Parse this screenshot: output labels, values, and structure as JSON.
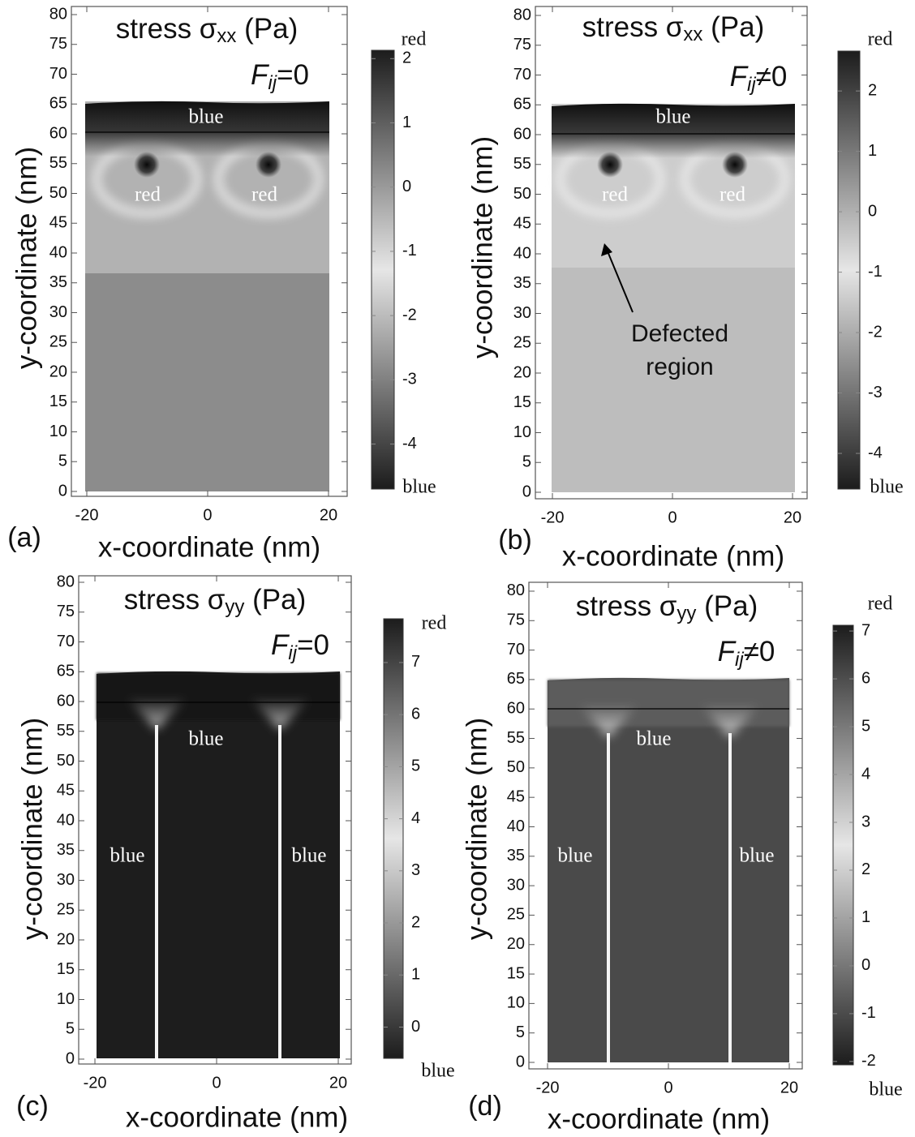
{
  "chart_data": [
    {
      "type": "heatmap",
      "panel_label": "(a)",
      "title": [
        "stress σ",
        "xx",
        " (Pa)"
      ],
      "condition": [
        "F",
        "ij",
        "=0"
      ],
      "xlabel": "x-coordinate (nm)",
      "ylabel": "y-coordinate (nm)",
      "xlim": [
        -22.55,
        23.09
      ],
      "ylim": [
        -0.82,
        81.36
      ],
      "xticks": [
        -20,
        0,
        20
      ],
      "yticks": [
        0,
        5,
        10,
        15,
        20,
        25,
        30,
        35,
        40,
        45,
        50,
        55,
        60,
        65,
        70,
        75,
        80
      ],
      "colorbar": {
        "lim": [
          -4.7,
          2.13
        ],
        "ticks": [
          -4,
          -3,
          -2,
          -1,
          0,
          1,
          2
        ],
        "top_label": "red",
        "bottom_label": "blue",
        "colors": [
          "#1c1c1c",
          "#e6e6e6",
          "#1c1c1c"
        ]
      },
      "annotations": [
        "blue",
        "red",
        "red"
      ]
    },
    {
      "type": "heatmap",
      "panel_label": "(b)",
      "title": [
        "stress σ",
        "xx",
        " (Pa)"
      ],
      "condition": [
        "F",
        "ij",
        "≠0"
      ],
      "xlabel": "x-coordinate (nm)",
      "ylabel": "y-coordinate (nm)",
      "xlim": [
        -22.84,
        22.43
      ],
      "ylim": [
        -1.09,
        81.5
      ],
      "xticks": [
        -20,
        0,
        20
      ],
      "yticks": [
        0,
        5,
        10,
        15,
        20,
        25,
        30,
        35,
        40,
        45,
        50,
        55,
        60,
        65,
        70,
        75,
        80
      ],
      "colorbar": {
        "lim": [
          -4.59,
          2.66
        ],
        "ticks": [
          -4,
          -3,
          -2,
          -1,
          0,
          1,
          2
        ],
        "top_label": "red",
        "bottom_label": "blue",
        "colors": [
          "#1c1c1c",
          "#e6e6e6",
          "#1c1c1c"
        ]
      },
      "annotations": [
        "blue",
        "red",
        "red",
        "Defected",
        "region"
      ]
    },
    {
      "type": "heatmap",
      "panel_label": "(c)",
      "title": [
        "stress σ",
        "yy",
        " (Pa)"
      ],
      "condition": [
        "F",
        "ij",
        "=0"
      ],
      "xlabel": "x-coordinate (nm)",
      "ylabel": "y-coordinate (nm)",
      "xlim": [
        -22.67,
        22.13
      ],
      "ylim": [
        -0.82,
        81.09
      ],
      "xticks": [
        -20,
        0,
        20
      ],
      "yticks": [
        0,
        5,
        10,
        15,
        20,
        25,
        30,
        35,
        40,
        45,
        50,
        55,
        60,
        65,
        70,
        75,
        80
      ],
      "colorbar": {
        "lim": [
          -0.6,
          7.84
        ],
        "ticks": [
          0,
          1,
          2,
          3,
          4,
          5,
          6,
          7
        ],
        "top_label": "red",
        "bottom_label": "blue",
        "colors": [
          "#1c1c1c",
          "#e6e6e6",
          "#1c1c1c"
        ]
      },
      "annotations": [
        "blue",
        "blue",
        "blue"
      ]
    },
    {
      "type": "heatmap",
      "panel_label": "(d)",
      "title": [
        "stress σ",
        "yy",
        " (Pa)"
      ],
      "condition": [
        "F",
        "ij",
        "≠0"
      ],
      "xlabel": "x-coordinate (nm)",
      "ylabel": "y-coordinate (nm)",
      "xlim": [
        -23.09,
        22.15
      ],
      "ylim": [
        -1.1,
        81.51
      ],
      "xticks": [
        -20,
        0,
        20
      ],
      "yticks": [
        0,
        5,
        10,
        15,
        20,
        25,
        30,
        35,
        40,
        45,
        50,
        55,
        60,
        65,
        70,
        75,
        80
      ],
      "colorbar": {
        "lim": [
          -2.07,
          7.12
        ],
        "ticks": [
          -2,
          -1,
          0,
          1,
          2,
          3,
          4,
          5,
          6,
          7
        ],
        "top_label": "red",
        "bottom_label": "blue",
        "colors": [
          "#1c1c1c",
          "#e6e6e6",
          "#1c1c1c"
        ]
      },
      "annotations": [
        "blue",
        "blue",
        "blue"
      ]
    }
  ]
}
